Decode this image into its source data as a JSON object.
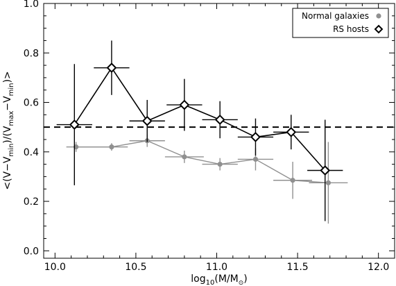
{
  "chart_data": {
    "type": "scatter",
    "xlabel": {
      "main": "log",
      "sub": "10",
      "rest": "(M/M",
      "sym": "⊙",
      "close": ")"
    },
    "ylabel": {
      "p1": "<(V−V",
      "s1": "min",
      "p2": ")/(V",
      "s2": "max",
      "p3": "−V",
      "s3": "min",
      "p4": ")>"
    },
    "xlim": [
      9.93,
      12.1
    ],
    "ylim": [
      -0.03,
      1.0
    ],
    "xticks": [
      10.0,
      10.5,
      11.0,
      11.5,
      12.0
    ],
    "xtick_labels": [
      "10.0",
      "10.5",
      "11.0",
      "11.5",
      "12.0"
    ],
    "yticks": [
      0.0,
      0.2,
      0.4,
      0.6,
      0.8,
      1.0
    ],
    "ytick_labels": [
      "0.0",
      "0.2",
      "0.4",
      "0.6",
      "0.8",
      "1.0"
    ],
    "reference_line": {
      "y": 0.5,
      "style": "dashed",
      "color": "#000000"
    },
    "legend": {
      "position": "top-right",
      "entries": [
        "Normal galaxies",
        "RS hosts"
      ]
    },
    "series": [
      {
        "name": "Normal galaxies",
        "marker": "filled-circle",
        "color": "#909090",
        "points": [
          {
            "x": 10.13,
            "y": 0.42,
            "xerr": [
              0.06,
              0.12
            ],
            "yerr": [
              0.02,
              0.02
            ]
          },
          {
            "x": 10.35,
            "y": 0.42,
            "xerr": [
              0.1,
              0.1
            ],
            "yerr": [
              0.015,
              0.015
            ]
          },
          {
            "x": 10.57,
            "y": 0.445,
            "xerr": [
              0.11,
              0.11
            ],
            "yerr": [
              0.025,
              0.025
            ]
          },
          {
            "x": 10.8,
            "y": 0.38,
            "xerr": [
              0.12,
              0.12
            ],
            "yerr": [
              0.025,
              0.025
            ]
          },
          {
            "x": 11.02,
            "y": 0.35,
            "xerr": [
              0.11,
              0.11
            ],
            "yerr": [
              0.025,
              0.025
            ]
          },
          {
            "x": 11.24,
            "y": 0.37,
            "xerr": [
              0.11,
              0.11
            ],
            "yerr": [
              0.045,
              0.045
            ]
          },
          {
            "x": 11.47,
            "y": 0.285,
            "xerr": [
              0.12,
              0.12
            ],
            "yerr": [
              0.075,
              0.075
            ]
          },
          {
            "x": 11.69,
            "y": 0.275,
            "xerr": [
              0.12,
              0.12
            ],
            "yerr": [
              0.165,
              0.165
            ]
          }
        ]
      },
      {
        "name": "RS hosts",
        "marker": "open-diamond",
        "color": "#000000",
        "points": [
          {
            "x": 10.12,
            "y": 0.51,
            "xerr": [
              0.11,
              0.11
            ],
            "yerr": [
              0.245,
              0.245
            ]
          },
          {
            "x": 10.35,
            "y": 0.74,
            "xerr": [
              0.11,
              0.11
            ],
            "yerr": [
              0.11,
              0.11
            ]
          },
          {
            "x": 10.57,
            "y": 0.525,
            "xerr": [
              0.11,
              0.11
            ],
            "yerr": [
              0.085,
              0.085
            ]
          },
          {
            "x": 10.8,
            "y": 0.59,
            "xerr": [
              0.11,
              0.11
            ],
            "yerr": [
              0.105,
              0.105
            ]
          },
          {
            "x": 11.02,
            "y": 0.53,
            "xerr": [
              0.11,
              0.11
            ],
            "yerr": [
              0.075,
              0.075
            ]
          },
          {
            "x": 11.24,
            "y": 0.46,
            "xerr": [
              0.11,
              0.11
            ],
            "yerr": [
              0.075,
              0.075
            ]
          },
          {
            "x": 11.46,
            "y": 0.48,
            "xerr": [
              0.11,
              0.11
            ],
            "yerr": [
              0.07,
              0.07
            ]
          },
          {
            "x": 11.67,
            "y": 0.325,
            "xerr": [
              0.11,
              0.11
            ],
            "yerr": [
              0.205,
              0.205
            ]
          }
        ]
      }
    ]
  }
}
